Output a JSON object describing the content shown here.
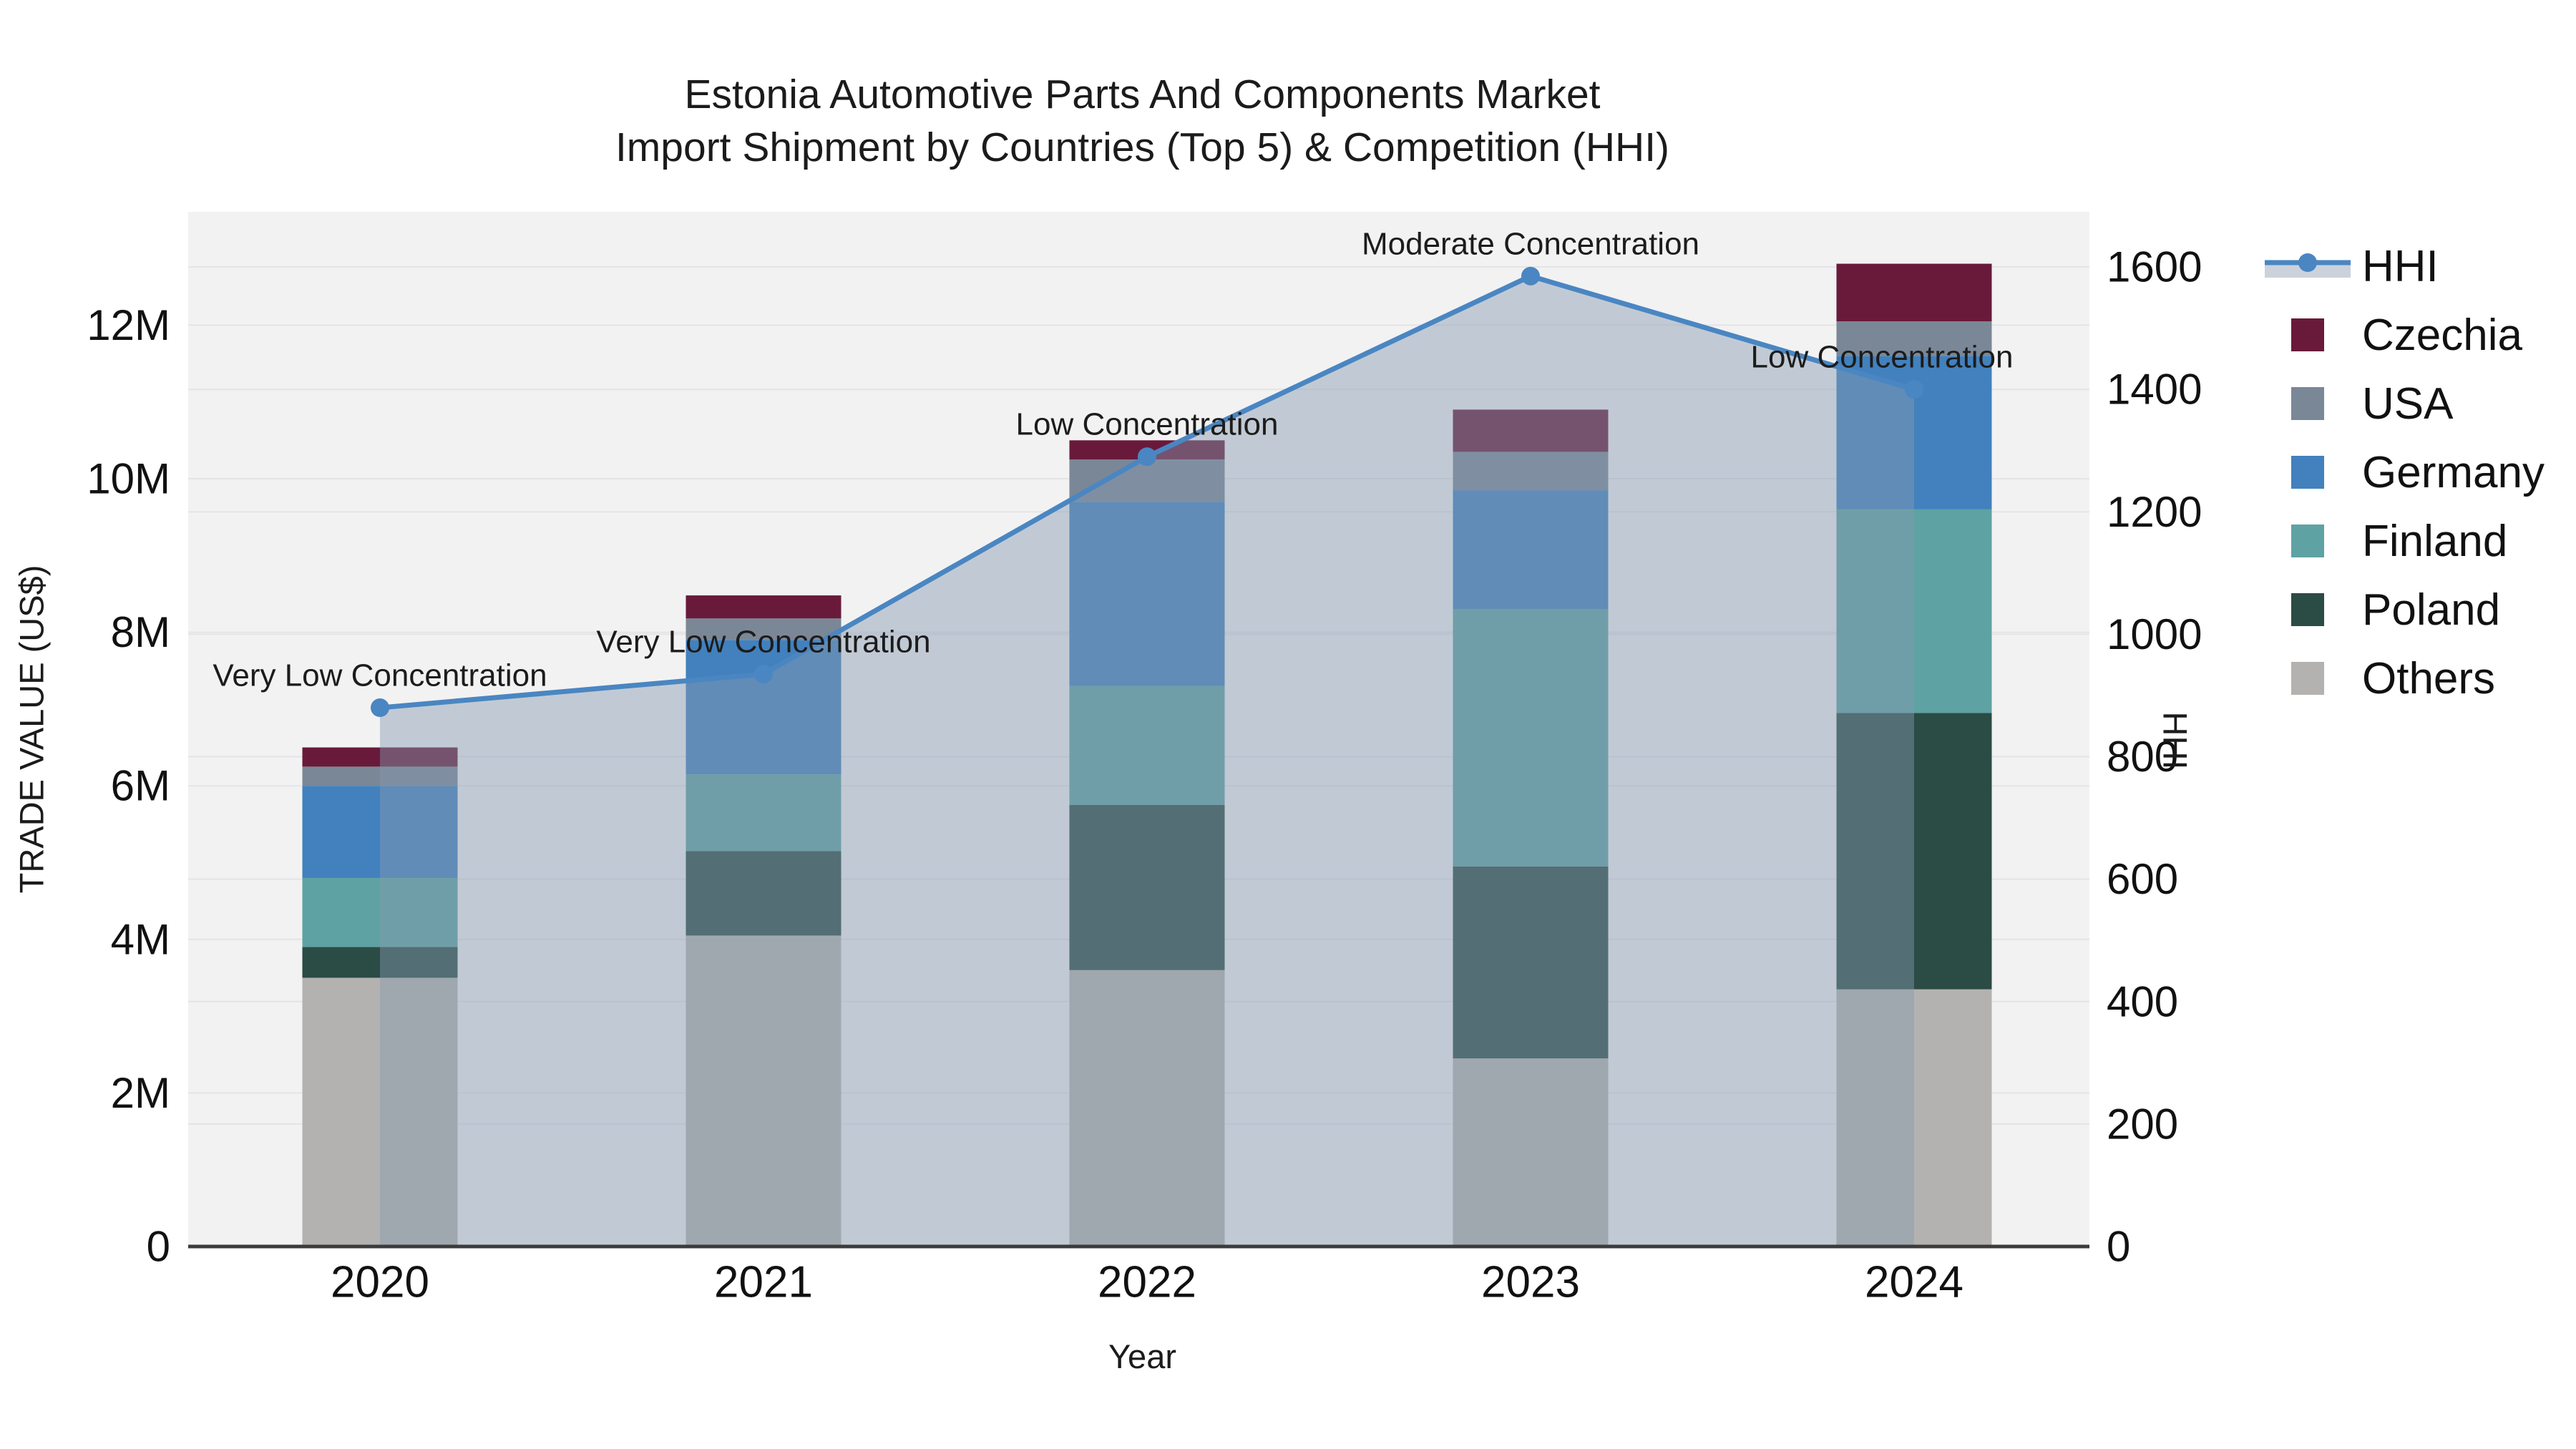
{
  "title": {
    "line1": "Estonia Automotive Parts And Components Market",
    "line2": "Import Shipment by Countries (Top 5) & Competition (HHI)"
  },
  "legend": {
    "items": [
      {
        "label": "HHI"
      },
      {
        "label": "Czechia"
      },
      {
        "label": "USA"
      },
      {
        "label": "Germany"
      },
      {
        "label": "Finland"
      },
      {
        "label": "Poland"
      },
      {
        "label": "Others"
      }
    ]
  },
  "chart_data": {
    "type": "bar+line",
    "title": "Estonia Automotive Parts And Components Market Import Shipment by Countries (Top 5) & Competition (HHI)",
    "x_title": "Year",
    "x_categories": [
      "2020",
      "2021",
      "2022",
      "2023",
      "2024"
    ],
    "y_left": {
      "title": "TRADE VALUE (US$)",
      "unit": "millions US$",
      "tick_labels": [
        "0",
        "2M",
        "4M",
        "6M",
        "8M",
        "10M",
        "12M"
      ],
      "tick_values": [
        0,
        2,
        4,
        6,
        8,
        10,
        12
      ]
    },
    "y_right": {
      "title": "HHI",
      "tick_labels": [
        "0",
        "200",
        "400",
        "600",
        "800",
        "1000",
        "1200",
        "1400",
        "1600"
      ],
      "tick_values": [
        0,
        200,
        400,
        600,
        800,
        1000,
        1200,
        1400,
        1600
      ],
      "max": 1600
    },
    "stack_order_bottom_to_top": [
      "Others",
      "Poland",
      "Finland",
      "Germany",
      "USA",
      "Czechia"
    ],
    "series": [
      {
        "name": "Czechia",
        "color": "#691A3B",
        "values": [
          0.25,
          0.3,
          0.25,
          0.55,
          0.75
        ]
      },
      {
        "name": "USA",
        "color": "#7A8796",
        "values": [
          0.25,
          0.28,
          0.55,
          0.5,
          0.45
        ]
      },
      {
        "name": "Germany",
        "color": "#4281BD",
        "values": [
          1.2,
          1.75,
          2.4,
          1.55,
          2.0
        ]
      },
      {
        "name": "Finland",
        "color": "#5FA2A3",
        "values": [
          0.9,
          1.0,
          1.55,
          3.35,
          2.65
        ]
      },
      {
        "name": "Poland",
        "color": "#2B4B45",
        "values": [
          0.4,
          1.1,
          2.15,
          2.5,
          3.6
        ]
      },
      {
        "name": "Others",
        "color": "#B4B2B0",
        "values": [
          3.5,
          4.05,
          3.6,
          2.45,
          3.35
        ]
      }
    ],
    "bar_totals_millions": [
      6.5,
      8.48,
      10.5,
      10.9,
      12.8
    ],
    "hhi": {
      "name": "HHI",
      "color": "#4A86C2",
      "area_fill": "rgba(132,152,176,0.45)",
      "legend_band": "#CBD2DC",
      "values": [
        880,
        935,
        1290,
        1585,
        1400
      ],
      "annotations": [
        "Very Low Concentration",
        "Very Low Concentration",
        "Low Concentration",
        "Moderate Concentration",
        "Low Concentration"
      ]
    }
  }
}
